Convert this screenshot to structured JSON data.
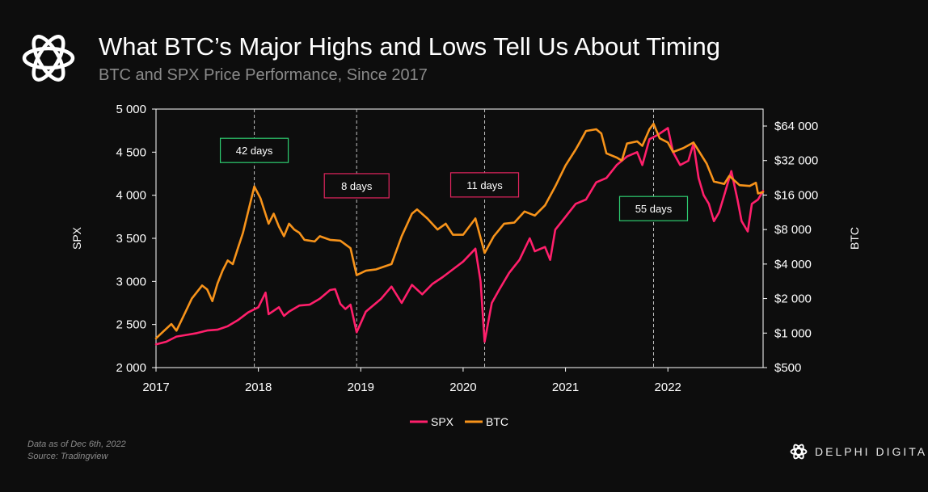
{
  "header": {
    "title": "What BTC’s Major Highs and Lows Tell Us About Timing",
    "subtitle": "BTC and SPX Price Performance, Since 2017"
  },
  "footer": {
    "note": "Data as of Dec 6th, 2022",
    "source": "Source: Tradingview"
  },
  "brand": {
    "name": "DELPHI DIGITAL",
    "logo_icon": "delphi-knot-icon"
  },
  "colors": {
    "background": "#0d0d0d",
    "spx": "#ff1f6b",
    "btc": "#f7931a",
    "green_box": "#2ecc71",
    "red_box": "#e0245e",
    "grid_line": "#bfbfbf"
  },
  "chart_data": {
    "type": "line",
    "title": "",
    "xlabel": "",
    "y_left": {
      "label": "SPX",
      "range": [
        2000,
        5000
      ],
      "ticks": [
        2000,
        2500,
        3000,
        3500,
        4000,
        4500,
        5000
      ],
      "tick_labels": [
        "2 000",
        "2 500",
        "3 000",
        "3 500",
        "4 000",
        "4 500",
        "5 000"
      ]
    },
    "y_right": {
      "label": "BTC",
      "scale": "log2",
      "range": [
        500,
        90000
      ],
      "ticks": [
        500,
        1000,
        2000,
        4000,
        8000,
        16000,
        32000,
        64000
      ],
      "tick_labels": [
        "$500",
        "$1 000",
        "$2 000",
        "$4 000",
        "$8 000",
        "$16 000",
        "$32 000",
        "$64 000"
      ]
    },
    "x": {
      "range": [
        2017.0,
        2022.93
      ],
      "ticks": [
        2017,
        2018,
        2019,
        2020,
        2021,
        2022
      ],
      "tick_labels": [
        "2017",
        "2018",
        "2019",
        "2020",
        "2021",
        "2022"
      ]
    },
    "vlines": [
      2017.96,
      2018.96,
      2020.21,
      2021.86
    ],
    "annotations": [
      {
        "text": "42 days",
        "x": 2017.96,
        "y_spx": 4520,
        "style": "green"
      },
      {
        "text": "8 days",
        "x": 2018.96,
        "y_spx": 4110,
        "style": "red"
      },
      {
        "text": "11 days",
        "x": 2020.21,
        "y_spx": 4120,
        "style": "red"
      },
      {
        "text": "55 days",
        "x": 2021.86,
        "y_spx": 3845,
        "style": "green"
      }
    ],
    "legend": {
      "position": "bottom-center",
      "entries": [
        {
          "name": "SPX",
          "color": "#ff1f6b"
        },
        {
          "name": "BTC",
          "color": "#f7931a"
        }
      ]
    },
    "series": [
      {
        "name": "SPX",
        "axis": "left",
        "color": "#ff1f6b",
        "points": [
          [
            2017.0,
            2270
          ],
          [
            2017.1,
            2300
          ],
          [
            2017.2,
            2360
          ],
          [
            2017.3,
            2380
          ],
          [
            2017.4,
            2400
          ],
          [
            2017.5,
            2430
          ],
          [
            2017.6,
            2440
          ],
          [
            2017.7,
            2480
          ],
          [
            2017.8,
            2550
          ],
          [
            2017.9,
            2640
          ],
          [
            2018.0,
            2700
          ],
          [
            2018.07,
            2870
          ],
          [
            2018.1,
            2620
          ],
          [
            2018.2,
            2700
          ],
          [
            2018.25,
            2600
          ],
          [
            2018.3,
            2650
          ],
          [
            2018.4,
            2720
          ],
          [
            2018.5,
            2730
          ],
          [
            2018.6,
            2800
          ],
          [
            2018.7,
            2900
          ],
          [
            2018.75,
            2910
          ],
          [
            2018.8,
            2740
          ],
          [
            2018.85,
            2680
          ],
          [
            2018.9,
            2730
          ],
          [
            2018.96,
            2410
          ],
          [
            2019.05,
            2650
          ],
          [
            2019.2,
            2800
          ],
          [
            2019.3,
            2940
          ],
          [
            2019.4,
            2750
          ],
          [
            2019.5,
            2960
          ],
          [
            2019.6,
            2850
          ],
          [
            2019.7,
            2970
          ],
          [
            2019.8,
            3050
          ],
          [
            2019.9,
            3140
          ],
          [
            2020.0,
            3230
          ],
          [
            2020.12,
            3380
          ],
          [
            2020.17,
            3000
          ],
          [
            2020.21,
            2300
          ],
          [
            2020.28,
            2750
          ],
          [
            2020.35,
            2900
          ],
          [
            2020.45,
            3100
          ],
          [
            2020.55,
            3250
          ],
          [
            2020.65,
            3500
          ],
          [
            2020.7,
            3350
          ],
          [
            2020.8,
            3400
          ],
          [
            2020.85,
            3250
          ],
          [
            2020.9,
            3600
          ],
          [
            2021.0,
            3750
          ],
          [
            2021.1,
            3900
          ],
          [
            2021.2,
            3950
          ],
          [
            2021.3,
            4150
          ],
          [
            2021.4,
            4200
          ],
          [
            2021.5,
            4350
          ],
          [
            2021.6,
            4450
          ],
          [
            2021.7,
            4500
          ],
          [
            2021.75,
            4350
          ],
          [
            2021.82,
            4650
          ],
          [
            2021.9,
            4700
          ],
          [
            2022.0,
            4780
          ],
          [
            2022.05,
            4500
          ],
          [
            2022.12,
            4350
          ],
          [
            2022.2,
            4400
          ],
          [
            2022.25,
            4600
          ],
          [
            2022.3,
            4200
          ],
          [
            2022.35,
            4000
          ],
          [
            2022.4,
            3900
          ],
          [
            2022.45,
            3700
          ],
          [
            2022.5,
            3800
          ],
          [
            2022.55,
            4000
          ],
          [
            2022.62,
            4280
          ],
          [
            2022.68,
            3950
          ],
          [
            2022.72,
            3700
          ],
          [
            2022.78,
            3580
          ],
          [
            2022.82,
            3900
          ],
          [
            2022.88,
            3950
          ],
          [
            2022.93,
            4050
          ]
        ]
      },
      {
        "name": "BTC",
        "axis": "right",
        "color": "#f7931a",
        "points": [
          [
            2017.0,
            900
          ],
          [
            2017.08,
            1050
          ],
          [
            2017.15,
            1200
          ],
          [
            2017.2,
            1050
          ],
          [
            2017.25,
            1300
          ],
          [
            2017.35,
            2000
          ],
          [
            2017.45,
            2600
          ],
          [
            2017.5,
            2400
          ],
          [
            2017.55,
            1900
          ],
          [
            2017.6,
            2700
          ],
          [
            2017.65,
            3500
          ],
          [
            2017.7,
            4300
          ],
          [
            2017.75,
            4000
          ],
          [
            2017.8,
            5500
          ],
          [
            2017.85,
            7500
          ],
          [
            2017.96,
            19000
          ],
          [
            2018.02,
            15000
          ],
          [
            2018.1,
            9000
          ],
          [
            2018.15,
            11000
          ],
          [
            2018.2,
            8500
          ],
          [
            2018.25,
            7000
          ],
          [
            2018.3,
            9000
          ],
          [
            2018.35,
            8000
          ],
          [
            2018.4,
            7500
          ],
          [
            2018.45,
            6500
          ],
          [
            2018.55,
            6300
          ],
          [
            2018.6,
            7000
          ],
          [
            2018.7,
            6500
          ],
          [
            2018.8,
            6400
          ],
          [
            2018.9,
            5500
          ],
          [
            2018.96,
            3200
          ],
          [
            2019.05,
            3500
          ],
          [
            2019.15,
            3600
          ],
          [
            2019.3,
            4000
          ],
          [
            2019.4,
            7000
          ],
          [
            2019.5,
            11000
          ],
          [
            2019.55,
            12000
          ],
          [
            2019.65,
            10000
          ],
          [
            2019.75,
            8000
          ],
          [
            2019.83,
            9000
          ],
          [
            2019.9,
            7200
          ],
          [
            2020.0,
            7200
          ],
          [
            2020.12,
            10000
          ],
          [
            2020.21,
            5000
          ],
          [
            2020.3,
            7000
          ],
          [
            2020.4,
            9000
          ],
          [
            2020.5,
            9200
          ],
          [
            2020.6,
            11500
          ],
          [
            2020.7,
            10600
          ],
          [
            2020.8,
            13000
          ],
          [
            2020.9,
            19000
          ],
          [
            2021.0,
            29000
          ],
          [
            2021.1,
            40000
          ],
          [
            2021.15,
            48000
          ],
          [
            2021.2,
            58000
          ],
          [
            2021.3,
            60000
          ],
          [
            2021.35,
            55000
          ],
          [
            2021.4,
            37000
          ],
          [
            2021.5,
            34000
          ],
          [
            2021.55,
            32000
          ],
          [
            2021.6,
            45000
          ],
          [
            2021.7,
            47000
          ],
          [
            2021.75,
            43000
          ],
          [
            2021.82,
            60000
          ],
          [
            2021.86,
            67000
          ],
          [
            2021.92,
            50000
          ],
          [
            2022.0,
            46000
          ],
          [
            2022.05,
            38000
          ],
          [
            2022.15,
            41000
          ],
          [
            2022.25,
            46000
          ],
          [
            2022.3,
            39000
          ],
          [
            2022.38,
            30000
          ],
          [
            2022.45,
            21000
          ],
          [
            2022.55,
            20000
          ],
          [
            2022.6,
            23500
          ],
          [
            2022.7,
            19500
          ],
          [
            2022.8,
            19200
          ],
          [
            2022.86,
            20500
          ],
          [
            2022.88,
            16500
          ],
          [
            2022.93,
            17000
          ]
        ]
      }
    ]
  }
}
